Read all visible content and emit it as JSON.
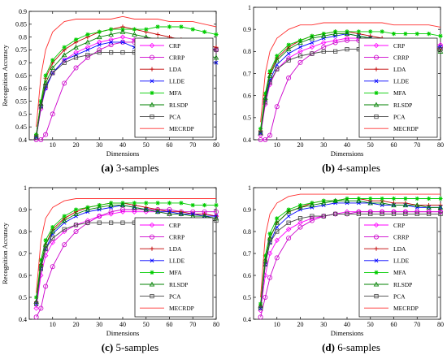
{
  "chart_data": [
    {
      "type": "line",
      "caption_letter": "(a)",
      "caption_text": " 3-samples",
      "xlabel": "Dimensions",
      "ylabel": "Recognition Accuracy",
      "xlim": [
        0,
        80
      ],
      "ylim": [
        0.4,
        0.9
      ],
      "xticks": [
        10,
        20,
        30,
        40,
        50,
        60,
        70,
        80
      ],
      "yticks": [
        "0.4",
        "0.45",
        "0.5",
        "0.55",
        "0.6",
        "0.65",
        "0.7",
        "0.75",
        "0.8",
        "0.85",
        "0.9"
      ],
      "legend_position": "bottom-right",
      "x": [
        3,
        5,
        7,
        10,
        15,
        20,
        25,
        30,
        35,
        40,
        45,
        50,
        55,
        60,
        65,
        70,
        75,
        80
      ],
      "series": [
        {
          "name": "CRP",
          "values": [
            0.41,
            0.52,
            0.6,
            0.66,
            0.71,
            0.74,
            0.76,
            0.78,
            0.79,
            0.8,
            0.79,
            0.79,
            0.78,
            0.78,
            0.77,
            0.76,
            0.76,
            0.75
          ]
        },
        {
          "name": "CRRP",
          "values": [
            0.4,
            0.4,
            0.42,
            0.5,
            0.62,
            0.68,
            0.72,
            0.75,
            0.77,
            0.78,
            0.78,
            0.79,
            0.78,
            0.77,
            0.76,
            0.76,
            0.75,
            0.75
          ]
        },
        {
          "name": "LDA",
          "values": [
            0.42,
            0.55,
            0.64,
            0.7,
            0.75,
            0.78,
            0.8,
            0.82,
            0.83,
            0.84,
            0.83,
            0.82,
            0.81,
            0.8,
            0.79,
            0.78,
            0.77,
            0.76
          ]
        },
        {
          "name": "LLDE",
          "values": [
            0.41,
            0.53,
            0.6,
            0.66,
            0.71,
            0.73,
            0.75,
            0.77,
            0.78,
            0.78,
            0.76,
            0.75,
            0.73,
            0.72,
            0.72,
            0.71,
            0.7,
            0.7
          ]
        },
        {
          "name": "MFA",
          "values": [
            0.42,
            0.55,
            0.65,
            0.71,
            0.76,
            0.79,
            0.81,
            0.82,
            0.83,
            0.83,
            0.83,
            0.83,
            0.84,
            0.84,
            0.84,
            0.83,
            0.82,
            0.81
          ]
        },
        {
          "name": "RLSDP",
          "values": [
            0.41,
            0.54,
            0.62,
            0.68,
            0.73,
            0.76,
            0.78,
            0.8,
            0.81,
            0.82,
            0.81,
            0.8,
            0.79,
            0.78,
            0.76,
            0.75,
            0.73,
            0.72
          ]
        },
        {
          "name": "PCA",
          "values": [
            0.41,
            0.53,
            0.61,
            0.66,
            0.7,
            0.72,
            0.73,
            0.74,
            0.74,
            0.74,
            0.74,
            0.75,
            0.75,
            0.75,
            0.75,
            0.75,
            0.75,
            0.75
          ]
        },
        {
          "name": "MECRDP",
          "values": [
            0.45,
            0.65,
            0.75,
            0.82,
            0.86,
            0.87,
            0.87,
            0.87,
            0.87,
            0.88,
            0.87,
            0.87,
            0.87,
            0.86,
            0.86,
            0.86,
            0.85,
            0.84
          ]
        }
      ]
    },
    {
      "type": "line",
      "caption_letter": "(b)",
      "caption_text": " 4-samples",
      "xlabel": "Dimensions",
      "ylabel": "",
      "xlim": [
        0,
        80
      ],
      "ylim": [
        0.4,
        1.0
      ],
      "xticks": [
        10,
        20,
        30,
        40,
        50,
        60,
        70,
        80
      ],
      "yticks": [
        "0.4",
        "0.5",
        "0.6",
        "0.7",
        "0.8",
        "0.9",
        "1"
      ],
      "legend_position": "bottom-right",
      "x": [
        3,
        5,
        7,
        10,
        15,
        20,
        25,
        30,
        35,
        40,
        45,
        50,
        55,
        60,
        65,
        70,
        75,
        80
      ],
      "series": [
        {
          "name": "CRP",
          "values": [
            0.42,
            0.56,
            0.65,
            0.72,
            0.77,
            0.8,
            0.82,
            0.84,
            0.85,
            0.86,
            0.86,
            0.85,
            0.85,
            0.84,
            0.84,
            0.84,
            0.83,
            0.83
          ]
        },
        {
          "name": "CRRP",
          "values": [
            0.4,
            0.4,
            0.42,
            0.55,
            0.68,
            0.75,
            0.79,
            0.82,
            0.84,
            0.85,
            0.85,
            0.85,
            0.84,
            0.84,
            0.83,
            0.83,
            0.82,
            0.82
          ]
        },
        {
          "name": "LDA",
          "values": [
            0.44,
            0.6,
            0.7,
            0.77,
            0.82,
            0.85,
            0.87,
            0.88,
            0.89,
            0.89,
            0.88,
            0.87,
            0.86,
            0.85,
            0.84,
            0.83,
            0.82,
            0.81
          ]
        },
        {
          "name": "LLDE",
          "values": [
            0.43,
            0.58,
            0.67,
            0.74,
            0.79,
            0.82,
            0.84,
            0.86,
            0.87,
            0.88,
            0.87,
            0.86,
            0.85,
            0.84,
            0.83,
            0.83,
            0.82,
            0.82
          ]
        },
        {
          "name": "MFA",
          "values": [
            0.45,
            0.61,
            0.71,
            0.78,
            0.83,
            0.85,
            0.87,
            0.88,
            0.89,
            0.89,
            0.89,
            0.89,
            0.89,
            0.88,
            0.88,
            0.88,
            0.88,
            0.87
          ]
        },
        {
          "name": "RLSDP",
          "values": [
            0.43,
            0.59,
            0.69,
            0.76,
            0.81,
            0.84,
            0.86,
            0.87,
            0.88,
            0.88,
            0.87,
            0.86,
            0.85,
            0.84,
            0.83,
            0.82,
            0.81,
            0.8
          ]
        },
        {
          "name": "PCA",
          "values": [
            0.43,
            0.57,
            0.66,
            0.72,
            0.76,
            0.78,
            0.79,
            0.8,
            0.8,
            0.81,
            0.81,
            0.81,
            0.81,
            0.81,
            0.81,
            0.81,
            0.81,
            0.81
          ]
        },
        {
          "name": "MECRDP",
          "values": [
            0.48,
            0.7,
            0.8,
            0.86,
            0.9,
            0.92,
            0.92,
            0.93,
            0.93,
            0.93,
            0.93,
            0.93,
            0.93,
            0.92,
            0.92,
            0.92,
            0.92,
            0.91
          ]
        }
      ]
    },
    {
      "type": "line",
      "caption_letter": "(c)",
      "caption_text": " 5-samples",
      "xlabel": "Dimensions",
      "ylabel": "Recognition Accuracy",
      "xlim": [
        0,
        80
      ],
      "ylim": [
        0.4,
        1.0
      ],
      "xticks": [
        10,
        20,
        30,
        40,
        50,
        60,
        70,
        80
      ],
      "yticks": [
        "0.4",
        "0.5",
        "0.6",
        "0.7",
        "0.8",
        "0.9",
        "1"
      ],
      "legend_position": "bottom-right",
      "x": [
        3,
        5,
        7,
        10,
        15,
        20,
        25,
        30,
        35,
        40,
        45,
        50,
        55,
        60,
        65,
        70,
        75,
        80
      ],
      "series": [
        {
          "name": "CRP",
          "values": [
            0.45,
            0.6,
            0.69,
            0.75,
            0.8,
            0.83,
            0.85,
            0.87,
            0.88,
            0.89,
            0.89,
            0.89,
            0.89,
            0.88,
            0.88,
            0.88,
            0.88,
            0.87
          ]
        },
        {
          "name": "CRRP",
          "values": [
            0.41,
            0.45,
            0.55,
            0.64,
            0.74,
            0.8,
            0.84,
            0.87,
            0.89,
            0.9,
            0.9,
            0.9,
            0.9,
            0.9,
            0.89,
            0.89,
            0.89,
            0.89
          ]
        },
        {
          "name": "LDA",
          "values": [
            0.48,
            0.65,
            0.74,
            0.81,
            0.86,
            0.89,
            0.91,
            0.92,
            0.93,
            0.93,
            0.92,
            0.91,
            0.9,
            0.89,
            0.89,
            0.88,
            0.88,
            0.87
          ]
        },
        {
          "name": "LLDE",
          "values": [
            0.47,
            0.63,
            0.72,
            0.79,
            0.84,
            0.87,
            0.89,
            0.9,
            0.91,
            0.92,
            0.91,
            0.9,
            0.89,
            0.89,
            0.88,
            0.88,
            0.87,
            0.87
          ]
        },
        {
          "name": "MFA",
          "values": [
            0.5,
            0.67,
            0.76,
            0.82,
            0.87,
            0.9,
            0.91,
            0.92,
            0.93,
            0.93,
            0.93,
            0.93,
            0.93,
            0.93,
            0.93,
            0.92,
            0.92,
            0.92
          ]
        },
        {
          "name": "RLSDP",
          "values": [
            0.48,
            0.65,
            0.74,
            0.8,
            0.85,
            0.88,
            0.9,
            0.91,
            0.92,
            0.92,
            0.91,
            0.9,
            0.89,
            0.88,
            0.88,
            0.87,
            0.87,
            0.86
          ]
        },
        {
          "name": "PCA",
          "values": [
            0.47,
            0.63,
            0.72,
            0.77,
            0.81,
            0.83,
            0.84,
            0.84,
            0.84,
            0.84,
            0.84,
            0.84,
            0.84,
            0.84,
            0.84,
            0.85,
            0.85,
            0.85
          ]
        },
        {
          "name": "MECRDP",
          "values": [
            0.52,
            0.76,
            0.86,
            0.91,
            0.94,
            0.95,
            0.95,
            0.95,
            0.95,
            0.95,
            0.95,
            0.95,
            0.95,
            0.95,
            0.95,
            0.95,
            0.95,
            0.95
          ]
        }
      ]
    },
    {
      "type": "line",
      "caption_letter": "(d)",
      "caption_text": " 6-samples",
      "xlabel": "Dimensions",
      "ylabel": "",
      "xlim": [
        0,
        80
      ],
      "ylim": [
        0.4,
        1.0
      ],
      "xticks": [
        10,
        20,
        30,
        40,
        50,
        60,
        70,
        80
      ],
      "yticks": [
        "0.4",
        "0.5",
        "0.6",
        "0.7",
        "0.8",
        "0.9",
        "1"
      ],
      "legend_position": "bottom-right",
      "x": [
        3,
        5,
        7,
        10,
        15,
        20,
        25,
        30,
        35,
        40,
        45,
        50,
        55,
        60,
        65,
        70,
        75,
        80
      ],
      "series": [
        {
          "name": "CRP",
          "values": [
            0.44,
            0.6,
            0.7,
            0.76,
            0.81,
            0.84,
            0.86,
            0.87,
            0.88,
            0.89,
            0.89,
            0.89,
            0.89,
            0.89,
            0.89,
            0.89,
            0.89,
            0.89
          ]
        },
        {
          "name": "CRRP",
          "values": [
            0.41,
            0.5,
            0.59,
            0.68,
            0.77,
            0.82,
            0.85,
            0.87,
            0.88,
            0.88,
            0.89,
            0.89,
            0.89,
            0.89,
            0.89,
            0.89,
            0.89,
            0.89
          ]
        },
        {
          "name": "LDA",
          "values": [
            0.46,
            0.67,
            0.77,
            0.84,
            0.89,
            0.91,
            0.93,
            0.94,
            0.94,
            0.95,
            0.95,
            0.94,
            0.94,
            0.93,
            0.93,
            0.92,
            0.92,
            0.92
          ]
        },
        {
          "name": "LLDE",
          "values": [
            0.45,
            0.65,
            0.75,
            0.82,
            0.87,
            0.9,
            0.91,
            0.92,
            0.93,
            0.93,
            0.93,
            0.93,
            0.92,
            0.92,
            0.92,
            0.91,
            0.91,
            0.91
          ]
        },
        {
          "name": "MFA",
          "values": [
            0.47,
            0.69,
            0.79,
            0.86,
            0.9,
            0.92,
            0.93,
            0.94,
            0.94,
            0.95,
            0.95,
            0.95,
            0.95,
            0.95,
            0.95,
            0.95,
            0.95,
            0.95
          ]
        },
        {
          "name": "RLSDP",
          "values": [
            0.46,
            0.67,
            0.77,
            0.84,
            0.89,
            0.91,
            0.92,
            0.93,
            0.94,
            0.94,
            0.94,
            0.93,
            0.93,
            0.92,
            0.92,
            0.92,
            0.91,
            0.91
          ]
        },
        {
          "name": "PCA",
          "values": [
            0.45,
            0.65,
            0.75,
            0.8,
            0.84,
            0.86,
            0.87,
            0.87,
            0.88,
            0.88,
            0.88,
            0.88,
            0.88,
            0.88,
            0.88,
            0.88,
            0.88,
            0.88
          ]
        },
        {
          "name": "MECRDP",
          "values": [
            0.5,
            0.78,
            0.88,
            0.93,
            0.96,
            0.97,
            0.97,
            0.97,
            0.97,
            0.97,
            0.97,
            0.97,
            0.97,
            0.97,
            0.97,
            0.97,
            0.97,
            0.97
          ]
        }
      ]
    }
  ],
  "series_styles": {
    "CRP": {
      "color": "#ff00ff",
      "marker": "diamond-icon"
    },
    "CRRP": {
      "color": "#cc00cc",
      "marker": "circle-icon"
    },
    "LDA": {
      "color": "#c00000",
      "marker": "plus-icon"
    },
    "LLDE": {
      "color": "#0000ff",
      "marker": "x-icon"
    },
    "MFA": {
      "color": "#00cc00",
      "marker": "star-icon"
    },
    "RLSDP": {
      "color": "#008000",
      "marker": "triangle-icon"
    },
    "PCA": {
      "color": "#444444",
      "marker": "square-icon"
    },
    "MECRDP": {
      "color": "#ff3030",
      "marker": "none"
    }
  }
}
